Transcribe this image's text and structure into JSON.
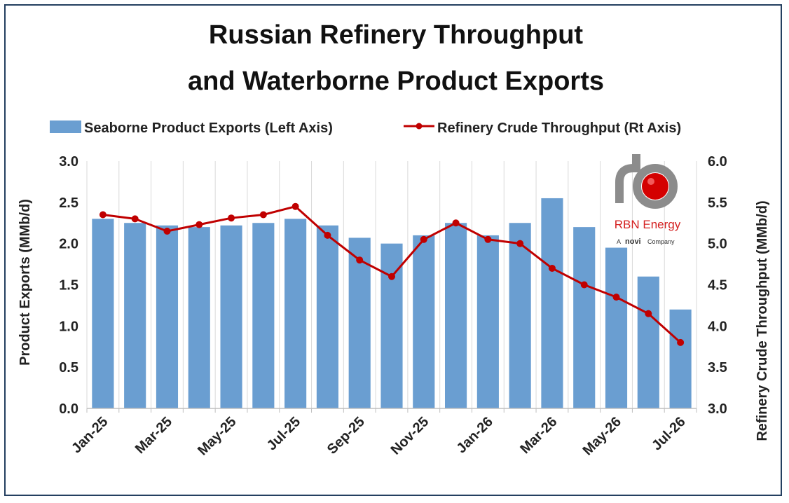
{
  "chart_data": {
    "type": "bar",
    "title_lines": [
      "Russian Refinery Throughput",
      "and Waterborne Product Exports"
    ],
    "legend": {
      "bar_label": "Seaborne Product Exports (Left Axis)",
      "line_label": "Refinery Crude Throughput (Rt Axis)",
      "placement": "top"
    },
    "categories": [
      "Jan-25",
      "Feb-25",
      "Mar-25",
      "Apr-25",
      "May-25",
      "Jun-25",
      "Jul-25",
      "Aug-25",
      "Sep-25",
      "Oct-25",
      "Nov-25",
      "Dec-25",
      "Jan-26",
      "Feb-26",
      "Mar-26",
      "Apr-26",
      "May-26",
      "Jun-26",
      "Jul-26"
    ],
    "x_tick_labels": [
      "Jan-25",
      "Mar-25",
      "May-25",
      "Jul-25",
      "Sep-25",
      "Nov-25",
      "Jan-26",
      "Mar-26",
      "May-26",
      "Jul-26"
    ],
    "series": [
      {
        "name": "Seaborne Product Exports (Left Axis)",
        "kind": "bar",
        "axis": "left",
        "color": "#6a9ed1",
        "values": [
          2.3,
          2.25,
          2.22,
          2.2,
          2.22,
          2.25,
          2.3,
          2.22,
          2.07,
          2.0,
          2.1,
          2.25,
          2.1,
          2.25,
          2.55,
          2.2,
          1.95,
          1.6,
          1.2
        ]
      },
      {
        "name": "Refinery Crude Throughput (Rt Axis)",
        "kind": "line",
        "axis": "right",
        "color": "#c00000",
        "values": [
          5.35,
          5.3,
          5.15,
          5.23,
          5.31,
          5.35,
          5.45,
          5.1,
          4.8,
          4.6,
          5.05,
          5.25,
          5.05,
          5.0,
          4.7,
          4.5,
          4.35,
          4.15,
          3.8
        ]
      }
    ],
    "y_left": {
      "label": "Product Exports (MMb/d)",
      "ylim": [
        0,
        3
      ],
      "ticks": [
        "0.0",
        "0.5",
        "1.0",
        "1.5",
        "2.0",
        "2.5",
        "3.0"
      ]
    },
    "y_right": {
      "label": "Refinery Crude Throughput (MMb/d)",
      "ylim": [
        3,
        6
      ],
      "ticks": [
        "3.0",
        "3.5",
        "4.0",
        "4.5",
        "5.0",
        "5.5",
        "6.0"
      ]
    },
    "grid": {
      "vertical": true,
      "horizontal": false
    }
  },
  "logo": {
    "name": "RBN Energy",
    "company_line_prefix": "A",
    "company_brand": "novi",
    "company_line_suffix": "Company",
    "colors": {
      "pipe": "#8c8c8c",
      "ball": "#d40000",
      "text_red": "#d42020"
    }
  }
}
